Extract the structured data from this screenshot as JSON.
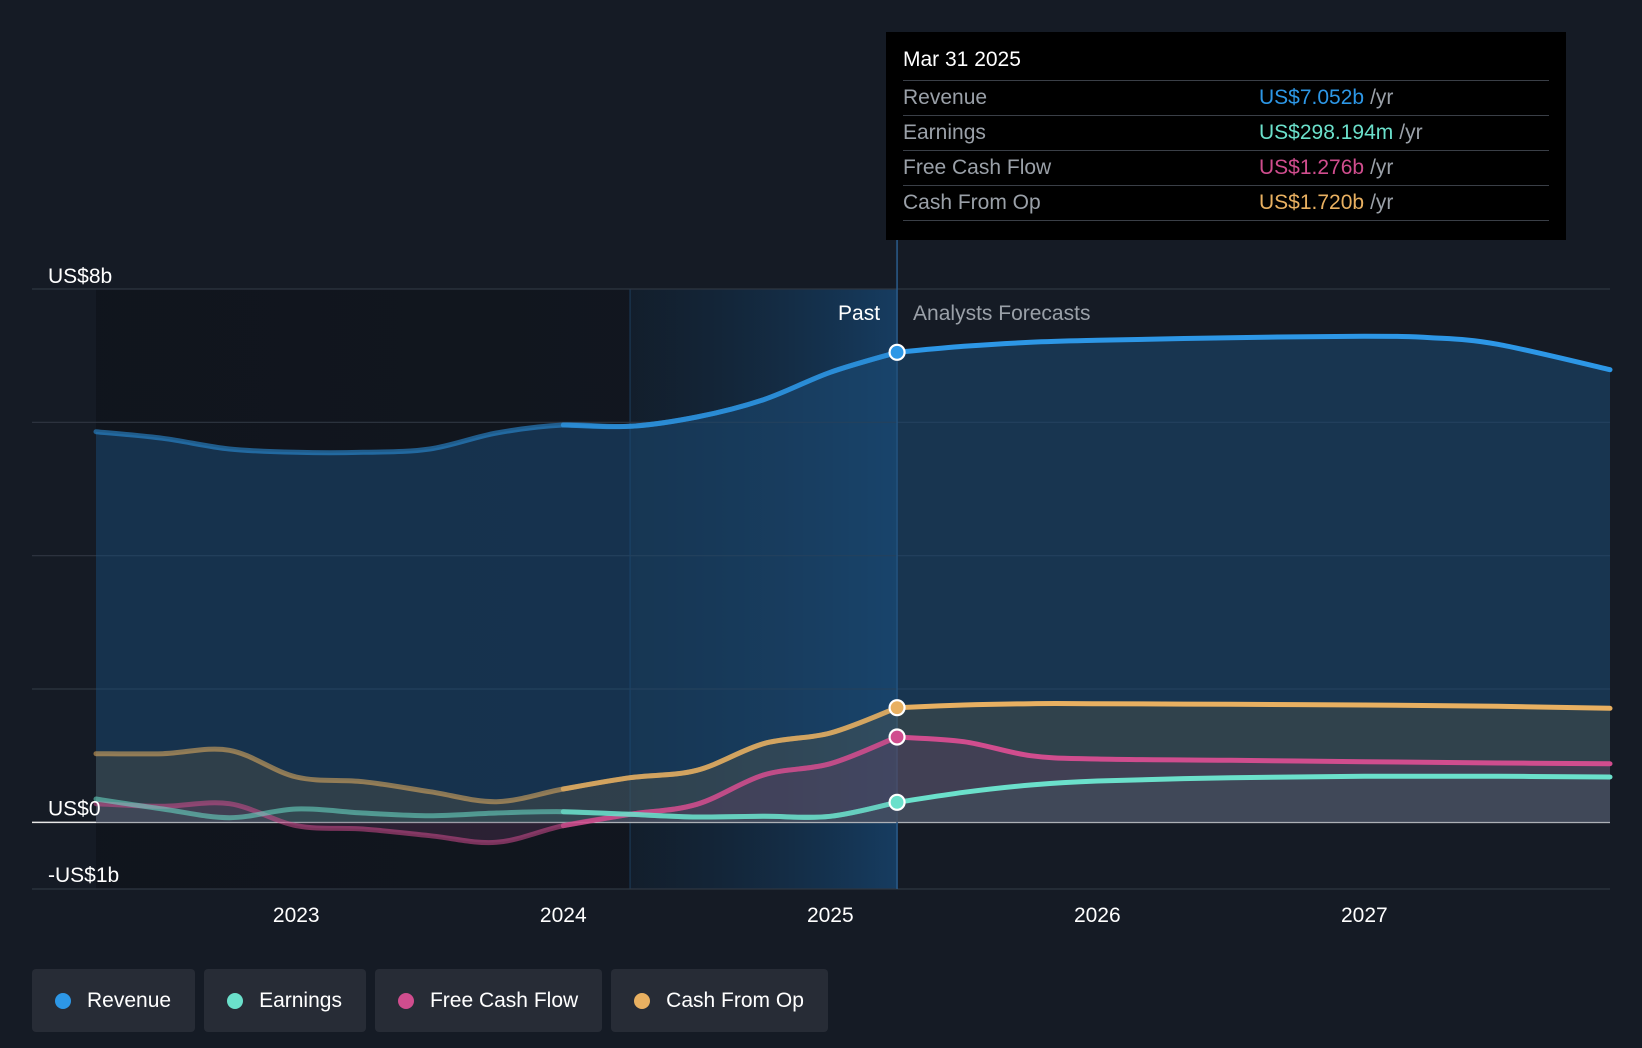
{
  "chart_data": {
    "type": "line",
    "x_domain": [
      2022.25,
      2027.92
    ],
    "divider_x": 2025.25,
    "ylim": [
      -1,
      8
    ],
    "y_ticks": [
      {
        "value": 8,
        "label": "US$8b"
      },
      {
        "value": 0,
        "label": "US$0"
      },
      {
        "value": -1,
        "label": "-US$1b"
      }
    ],
    "y_gridlines": [
      8,
      6,
      4,
      2,
      -1
    ],
    "x_ticks": [
      {
        "value": 2023,
        "label": "2023"
      },
      {
        "value": 2024,
        "label": "2024"
      },
      {
        "value": 2025,
        "label": "2025"
      },
      {
        "value": 2026,
        "label": "2026"
      },
      {
        "value": 2027,
        "label": "2027"
      }
    ],
    "past_label": "Past",
    "forecast_label": "Analysts Forecasts",
    "series": [
      {
        "name": "Revenue",
        "color": "#2d97e6",
        "points": [
          [
            2022.25,
            5.86
          ],
          [
            2022.5,
            5.76
          ],
          [
            2022.75,
            5.6
          ],
          [
            2023.0,
            5.55
          ],
          [
            2023.25,
            5.55
          ],
          [
            2023.5,
            5.6
          ],
          [
            2023.75,
            5.84
          ],
          [
            2024.0,
            5.96
          ],
          [
            2024.25,
            5.94
          ],
          [
            2024.5,
            6.08
          ],
          [
            2024.75,
            6.34
          ],
          [
            2025.0,
            6.75
          ],
          [
            2025.25,
            7.05
          ],
          [
            2025.5,
            7.14
          ],
          [
            2025.75,
            7.2
          ],
          [
            2026.0,
            7.23
          ],
          [
            2026.5,
            7.27
          ],
          [
            2027.0,
            7.29
          ],
          [
            2027.25,
            7.27
          ],
          [
            2027.5,
            7.17
          ],
          [
            2027.92,
            6.79
          ]
        ]
      },
      {
        "name": "Cash From Op",
        "color": "#e8b061",
        "points": [
          [
            2022.25,
            1.03
          ],
          [
            2022.5,
            1.03
          ],
          [
            2022.75,
            1.08
          ],
          [
            2023.0,
            0.68
          ],
          [
            2023.25,
            0.61
          ],
          [
            2023.5,
            0.46
          ],
          [
            2023.75,
            0.31
          ],
          [
            2024.0,
            0.5
          ],
          [
            2024.25,
            0.67
          ],
          [
            2024.5,
            0.78
          ],
          [
            2024.75,
            1.18
          ],
          [
            2025.0,
            1.34
          ],
          [
            2025.25,
            1.72
          ],
          [
            2025.5,
            1.76
          ],
          [
            2025.75,
            1.78
          ],
          [
            2026.0,
            1.78
          ],
          [
            2026.5,
            1.77
          ],
          [
            2027.0,
            1.76
          ],
          [
            2027.5,
            1.74
          ],
          [
            2027.92,
            1.71
          ]
        ]
      },
      {
        "name": "Free Cash Flow",
        "color": "#d04d8e",
        "points": [
          [
            2022.25,
            0.28
          ],
          [
            2022.5,
            0.24
          ],
          [
            2022.75,
            0.28
          ],
          [
            2023.0,
            -0.05
          ],
          [
            2023.25,
            -0.1
          ],
          [
            2023.5,
            -0.2
          ],
          [
            2023.75,
            -0.3
          ],
          [
            2024.0,
            -0.05
          ],
          [
            2024.25,
            0.12
          ],
          [
            2024.5,
            0.27
          ],
          [
            2024.75,
            0.71
          ],
          [
            2025.0,
            0.88
          ],
          [
            2025.25,
            1.28
          ],
          [
            2025.5,
            1.21
          ],
          [
            2025.75,
            1.0
          ],
          [
            2026.0,
            0.95
          ],
          [
            2026.5,
            0.93
          ],
          [
            2027.0,
            0.91
          ],
          [
            2027.5,
            0.89
          ],
          [
            2027.92,
            0.88
          ]
        ]
      },
      {
        "name": "Earnings",
        "color": "#6be0cb",
        "points": [
          [
            2022.25,
            0.35
          ],
          [
            2022.5,
            0.2
          ],
          [
            2022.75,
            0.07
          ],
          [
            2023.0,
            0.2
          ],
          [
            2023.25,
            0.14
          ],
          [
            2023.5,
            0.1
          ],
          [
            2023.75,
            0.14
          ],
          [
            2024.0,
            0.16
          ],
          [
            2024.25,
            0.12
          ],
          [
            2024.5,
            0.08
          ],
          [
            2024.75,
            0.09
          ],
          [
            2025.0,
            0.09
          ],
          [
            2025.25,
            0.3
          ],
          [
            2025.5,
            0.45
          ],
          [
            2025.75,
            0.56
          ],
          [
            2026.0,
            0.62
          ],
          [
            2026.5,
            0.67
          ],
          [
            2027.0,
            0.69
          ],
          [
            2027.5,
            0.69
          ],
          [
            2027.92,
            0.68
          ]
        ]
      }
    ]
  },
  "tooltip": {
    "date": "Mar 31 2025",
    "rows": [
      {
        "label": "Revenue",
        "value": "US$7.052b",
        "unit": "/yr",
        "color": "#2d97e6"
      },
      {
        "label": "Earnings",
        "value": "US$298.194m",
        "unit": "/yr",
        "color": "#6be0cb"
      },
      {
        "label": "Free Cash Flow",
        "value": "US$1.276b",
        "unit": "/yr",
        "color": "#d04d8e"
      },
      {
        "label": "Cash From Op",
        "value": "US$1.720b",
        "unit": "/yr",
        "color": "#e8b061"
      }
    ]
  },
  "legend": [
    {
      "label": "Revenue",
      "color": "#2d97e6"
    },
    {
      "label": "Earnings",
      "color": "#6be0cb"
    },
    {
      "label": "Free Cash Flow",
      "color": "#d04d8e"
    },
    {
      "label": "Cash From Op",
      "color": "#e8b061"
    }
  ]
}
